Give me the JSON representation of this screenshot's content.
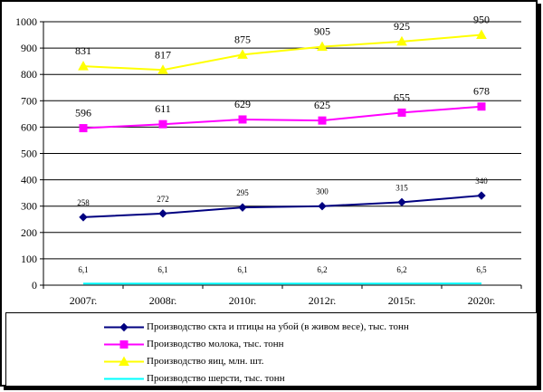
{
  "chart_data": {
    "type": "line",
    "categories": [
      "2007г.",
      "2008г.",
      "2010г.",
      "2012г.",
      "2015г.",
      "2020г."
    ],
    "ylim": [
      0,
      1000
    ],
    "yticks": [
      "0",
      "100",
      "200",
      "300",
      "400",
      "500",
      "600",
      "700",
      "800",
      "900",
      "1000"
    ],
    "grid": true,
    "legend_position": "bottom",
    "series": [
      {
        "name": "Производство скта и птицы на убой (в живом весе), тыс. тонн",
        "values": [
          258,
          272,
          295,
          300,
          315,
          340
        ],
        "labels": [
          "258",
          "272",
          "295",
          "300",
          "315",
          "340"
        ],
        "color": "#000080",
        "marker": "diamond"
      },
      {
        "name": "Производство молока, тыс. тонн",
        "values": [
          596,
          611,
          629,
          625,
          655,
          678
        ],
        "labels": [
          "596",
          "611",
          "629",
          "625",
          "655",
          "678"
        ],
        "color": "#ff00ff",
        "marker": "square"
      },
      {
        "name": "Производство яиц, млн. шт.",
        "values": [
          831,
          817,
          875,
          905,
          925,
          950
        ],
        "labels": [
          "831",
          "817",
          "875",
          "905",
          "925",
          "950"
        ],
        "color": "#ffff00",
        "marker": "triangle"
      },
      {
        "name": "Производство шерсти, тыс. тонн",
        "values": [
          6.1,
          6.1,
          6.1,
          6.2,
          6.2,
          6.5
        ],
        "labels": [
          "6,1",
          "6,1",
          "6,1",
          "6,2",
          "6,2",
          "6,5"
        ],
        "color": "#00ffff",
        "marker": "none"
      }
    ]
  }
}
